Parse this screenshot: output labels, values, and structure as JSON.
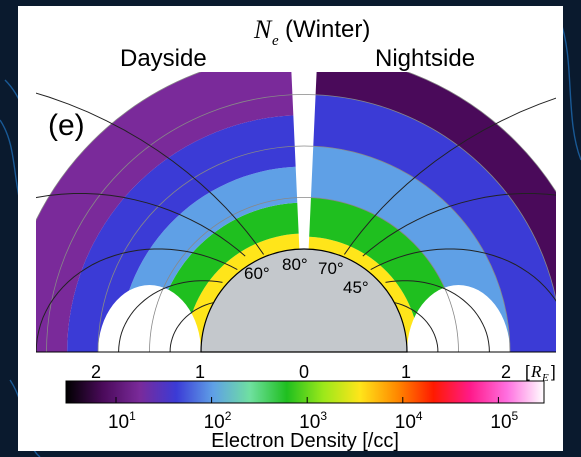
{
  "chart_data": {
    "type": "heatmap",
    "title_symbol": "N",
    "title_subscript": "e",
    "title_season": "(Winter)",
    "left_label": "Dayside",
    "right_label": "Nightside",
    "panel_label": "(e)",
    "latitude_labels": [
      "60°",
      "80°",
      "70°",
      "45°"
    ],
    "x_ticks": [
      "2",
      "1",
      "0",
      "1",
      "2"
    ],
    "x_unit_open": "[",
    "x_unit_symbol": "R",
    "x_unit_subscript": "E",
    "x_unit_close": "]",
    "colorbar": {
      "label": "Electron Density [/cc]",
      "scale": "log",
      "range": [
        3,
        300000
      ],
      "tick_base": "10",
      "tick_exponents": [
        "1",
        "2",
        "3",
        "4",
        "5"
      ],
      "colors": [
        "#000000",
        "#4a0a5a",
        "#7a2a9a",
        "#3b3bd6",
        "#5fa0e6",
        "#6fe0a0",
        "#1fbf1f",
        "#9be81a",
        "#ffe51a",
        "#ff8a00",
        "#ff1a00",
        "#ff1a8a",
        "#ff70e0",
        "#ffffff"
      ]
    },
    "density_bands_dayside": [
      {
        "from_r": 1.0,
        "to_r": 1.15,
        "color": "#ffe51a"
      },
      {
        "from_r": 1.15,
        "to_r": 1.45,
        "color": "#1fbf1f"
      },
      {
        "from_r": 1.45,
        "to_r": 1.8,
        "color": "#5fa0e6"
      },
      {
        "from_r": 1.8,
        "to_r": 2.3,
        "color": "#3b3bd6"
      },
      {
        "from_r": 2.3,
        "to_r": 2.9,
        "color": "#7a2a9a"
      }
    ],
    "density_bands_nightside": [
      {
        "from_r": 1.0,
        "to_r": 1.12,
        "color": "#ffe51a"
      },
      {
        "from_r": 1.12,
        "to_r": 1.5,
        "color": "#1fbf1f"
      },
      {
        "from_r": 1.5,
        "to_r": 2.0,
        "color": "#5fa0e6"
      },
      {
        "from_r": 2.0,
        "to_r": 2.5,
        "color": "#3b3bd6"
      },
      {
        "from_r": 2.5,
        "to_r": 2.9,
        "color": "#4a0a5a"
      }
    ],
    "colors": {
      "earth": "#c4c8cc",
      "background": "#0a1a2e",
      "panel": "#ffffff"
    }
  }
}
